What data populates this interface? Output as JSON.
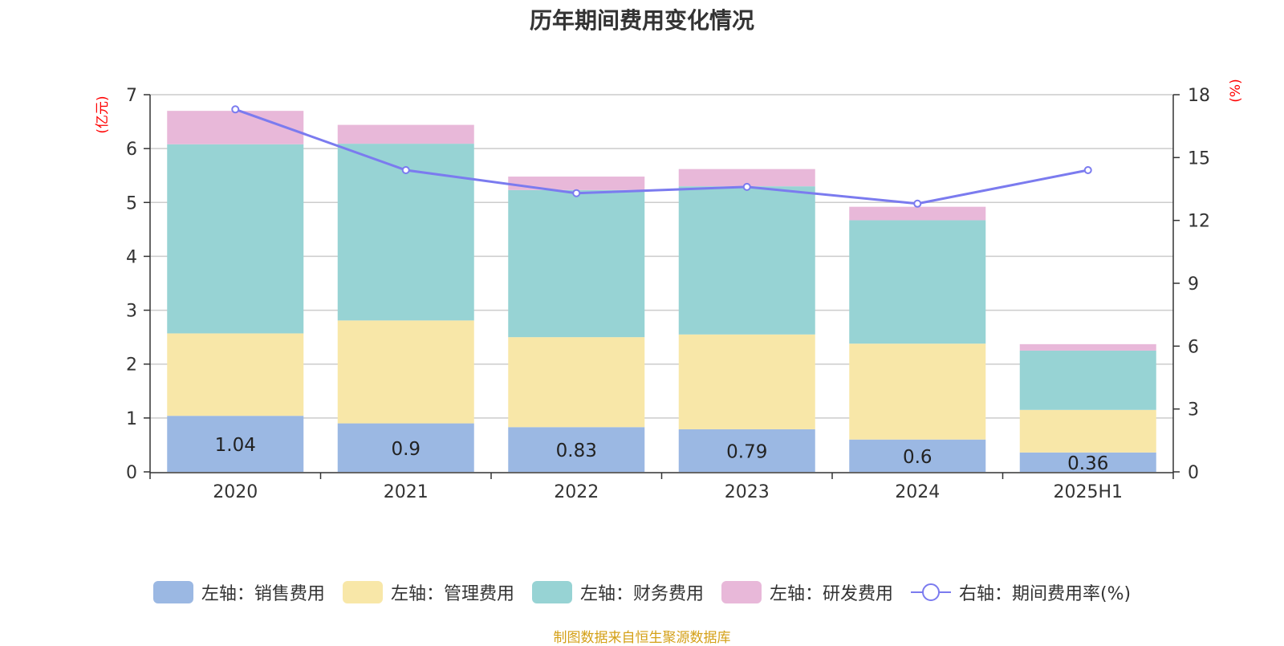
{
  "chart_data": {
    "type": "bar",
    "title": "历年期间费用变化情况",
    "categories": [
      "2020",
      "2021",
      "2022",
      "2023",
      "2024",
      "2025H1"
    ],
    "stacked": true,
    "left_axis": {
      "unit_label": "(亿元)",
      "ylim": [
        0,
        7
      ],
      "ticks": [
        0,
        1,
        2,
        3,
        4,
        5,
        6,
        7
      ]
    },
    "right_axis": {
      "unit_label": "(%)",
      "ylim": [
        0,
        18
      ],
      "ticks": [
        0,
        3,
        6,
        9,
        12,
        15,
        18
      ]
    },
    "series": [
      {
        "name": "左轴：销售费用",
        "type": "bar",
        "axis": "left",
        "color": "#9bb8e3",
        "values": [
          1.04,
          0.9,
          0.83,
          0.79,
          0.6,
          0.36
        ],
        "data_labels": [
          "1.04",
          "0.9",
          "0.83",
          "0.79",
          "0.6",
          "0.36"
        ]
      },
      {
        "name": "左轴：管理费用",
        "type": "bar",
        "axis": "left",
        "color": "#f8e7a8",
        "values": [
          1.53,
          1.91,
          1.67,
          1.76,
          1.78,
          0.79
        ]
      },
      {
        "name": "左轴：财务费用",
        "type": "bar",
        "axis": "left",
        "color": "#97d3d4",
        "values": [
          3.51,
          3.28,
          2.73,
          2.75,
          2.29,
          1.1
        ]
      },
      {
        "name": "左轴：研发费用",
        "type": "bar",
        "axis": "left",
        "color": "#e8b8d9",
        "values": [
          0.62,
          0.35,
          0.25,
          0.32,
          0.25,
          0.12
        ]
      },
      {
        "name": "右轴：期间费用率(%)",
        "type": "line",
        "axis": "right",
        "color": "#7b7bef",
        "values": [
          17.3,
          14.4,
          13.3,
          13.6,
          12.8,
          14.4
        ]
      }
    ],
    "grid": true,
    "legend_position": "bottom"
  },
  "source_note": "制图数据来自恒生聚源数据库"
}
